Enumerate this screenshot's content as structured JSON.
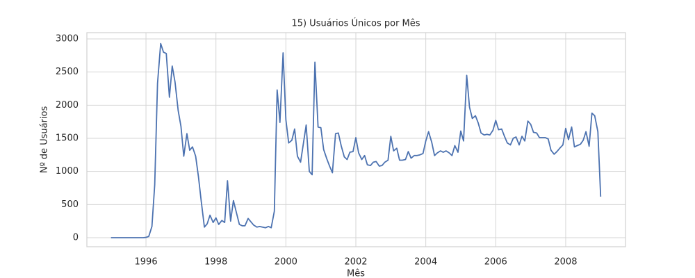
{
  "chart_data": {
    "type": "line",
    "title": "15) Usuários Únicos por Mês",
    "x_label": "Mês",
    "y_label": "Nº de Usuários",
    "x": [
      1995,
      1995.08,
      1995.17,
      1995.25,
      1995.33,
      1995.42,
      1995.5,
      1995.58,
      1995.67,
      1995.75,
      1995.83,
      1995.92,
      1996,
      1996.08,
      1996.17,
      1996.25,
      1996.33,
      1996.42,
      1996.5,
      1996.58,
      1996.67,
      1996.75,
      1996.83,
      1996.92,
      1997,
      1997.08,
      1997.17,
      1997.25,
      1997.33,
      1997.42,
      1997.5,
      1997.58,
      1997.67,
      1997.75,
      1997.83,
      1997.92,
      1998,
      1998.08,
      1998.17,
      1998.25,
      1998.33,
      1998.42,
      1998.5,
      1998.58,
      1998.67,
      1998.75,
      1998.83,
      1998.92,
      1999,
      1999.08,
      1999.17,
      1999.25,
      1999.33,
      1999.42,
      1999.5,
      1999.58,
      1999.67,
      1999.75,
      1999.83,
      1999.92,
      2000,
      2000.08,
      2000.17,
      2000.25,
      2000.33,
      2000.42,
      2000.5,
      2000.58,
      2000.67,
      2000.75,
      2000.83,
      2000.92,
      2001,
      2001.08,
      2001.17,
      2001.25,
      2001.33,
      2001.42,
      2001.5,
      2001.58,
      2001.67,
      2001.75,
      2001.83,
      2001.92,
      2002,
      2002.08,
      2002.17,
      2002.25,
      2002.33,
      2002.42,
      2002.5,
      2002.58,
      2002.67,
      2002.75,
      2002.83,
      2002.92,
      2003,
      2003.08,
      2003.17,
      2003.25,
      2003.33,
      2003.42,
      2003.5,
      2003.58,
      2003.67,
      2003.75,
      2003.83,
      2003.92,
      2004,
      2004.08,
      2004.17,
      2004.25,
      2004.33,
      2004.42,
      2004.5,
      2004.58,
      2004.67,
      2004.75,
      2004.83,
      2004.92,
      2005,
      2005.08,
      2005.17,
      2005.25,
      2005.33,
      2005.42,
      2005.5,
      2005.58,
      2005.67,
      2005.75,
      2005.83,
      2005.92,
      2006,
      2006.08,
      2006.17,
      2006.25,
      2006.33,
      2006.42,
      2006.5,
      2006.58,
      2006.67,
      2006.75,
      2006.83,
      2006.92,
      2007,
      2007.08,
      2007.17,
      2007.25,
      2007.33,
      2007.42,
      2007.5,
      2007.58,
      2007.67,
      2007.75,
      2007.83,
      2007.92,
      2008,
      2008.08,
      2008.17,
      2008.25,
      2008.33,
      2008.42,
      2008.5,
      2008.58,
      2008.67,
      2008.75,
      2008.83,
      2008.92,
      2009
    ],
    "series": [
      {
        "color": "#4c72b0",
        "values": [
          0,
          0,
          0,
          0,
          0,
          0,
          0,
          0,
          0,
          0,
          0,
          0,
          5,
          20,
          170,
          800,
          2330,
          2930,
          2800,
          2780,
          2120,
          2590,
          2350,
          1920,
          1680,
          1230,
          1570,
          1320,
          1370,
          1230,
          920,
          550,
          160,
          210,
          340,
          230,
          300,
          200,
          260,
          230,
          860,
          250,
          560,
          390,
          200,
          180,
          180,
          290,
          240,
          190,
          160,
          170,
          160,
          150,
          170,
          150,
          400,
          2230,
          1740,
          2790,
          1780,
          1430,
          1470,
          1640,
          1230,
          1140,
          1420,
          1700,
          1000,
          950,
          2650,
          1670,
          1660,
          1330,
          1190,
          1080,
          980,
          1570,
          1580,
          1390,
          1220,
          1180,
          1290,
          1300,
          1510,
          1280,
          1180,
          1240,
          1100,
          1090,
          1140,
          1150,
          1080,
          1090,
          1140,
          1170,
          1530,
          1310,
          1350,
          1170,
          1170,
          1180,
          1300,
          1200,
          1240,
          1240,
          1250,
          1270,
          1460,
          1600,
          1440,
          1240,
          1280,
          1310,
          1290,
          1310,
          1280,
          1240,
          1390,
          1290,
          1610,
          1460,
          2450,
          1970,
          1800,
          1840,
          1730,
          1580,
          1550,
          1560,
          1550,
          1620,
          1770,
          1630,
          1640,
          1530,
          1430,
          1400,
          1500,
          1520,
          1400,
          1530,
          1460,
          1760,
          1710,
          1590,
          1580,
          1510,
          1510,
          1510,
          1490,
          1320,
          1260,
          1300,
          1350,
          1400,
          1650,
          1480,
          1670,
          1370,
          1390,
          1410,
          1470,
          1600,
          1380,
          1880,
          1840,
          1600,
          620
        ]
      }
    ],
    "xlim": [
      1994.31,
      2009.71
    ],
    "ylim": [
      -136,
      3094
    ],
    "xticks": [
      1996,
      1998,
      2000,
      2002,
      2004,
      2006,
      2008
    ],
    "yticks": [
      0,
      500,
      1000,
      1500,
      2000,
      2500,
      3000
    ],
    "grid": true
  }
}
